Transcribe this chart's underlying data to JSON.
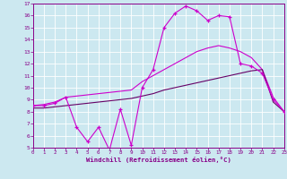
{
  "xlabel": "Windchill (Refroidissement éolien,°C)",
  "bg_color": "#cce8f0",
  "line_color1": "#cc00cc",
  "line_color2": "#cc00cc",
  "line_color3": "#660066",
  "axis_color": "#880088",
  "grid_color": "#ffffff",
  "xmin": 0,
  "xmax": 23,
  "ymin": 5,
  "ymax": 17,
  "line1_x": [
    0,
    1,
    2,
    3,
    4,
    5,
    6,
    7,
    8,
    9,
    10,
    11,
    12,
    13,
    14,
    15,
    16,
    17,
    18,
    19,
    20,
    21,
    22,
    23
  ],
  "line1_y": [
    8.5,
    8.5,
    8.7,
    9.2,
    6.7,
    5.5,
    6.7,
    4.8,
    8.2,
    5.2,
    10.0,
    11.5,
    15.0,
    16.2,
    16.8,
    16.4,
    15.6,
    16.0,
    15.9,
    12.0,
    11.8,
    11.2,
    9.0,
    8.0
  ],
  "line2_x": [
    0,
    1,
    2,
    3,
    4,
    5,
    6,
    7,
    8,
    9,
    10,
    11,
    12,
    13,
    14,
    15,
    16,
    17,
    18,
    19,
    20,
    21,
    22,
    23
  ],
  "line2_y": [
    8.5,
    8.6,
    8.8,
    9.2,
    9.3,
    9.4,
    9.5,
    9.6,
    9.7,
    9.8,
    10.5,
    11.0,
    11.5,
    12.0,
    12.5,
    13.0,
    13.3,
    13.5,
    13.3,
    13.0,
    12.5,
    11.5,
    9.2,
    8.0
  ],
  "line3_x": [
    0,
    1,
    2,
    3,
    4,
    5,
    6,
    7,
    8,
    9,
    10,
    11,
    12,
    13,
    14,
    15,
    16,
    17,
    18,
    19,
    20,
    21,
    22,
    23
  ],
  "line3_y": [
    8.3,
    8.3,
    8.4,
    8.5,
    8.6,
    8.7,
    8.8,
    8.9,
    9.0,
    9.1,
    9.3,
    9.5,
    9.8,
    10.0,
    10.2,
    10.4,
    10.6,
    10.8,
    11.0,
    11.2,
    11.4,
    11.5,
    8.8,
    8.0
  ]
}
